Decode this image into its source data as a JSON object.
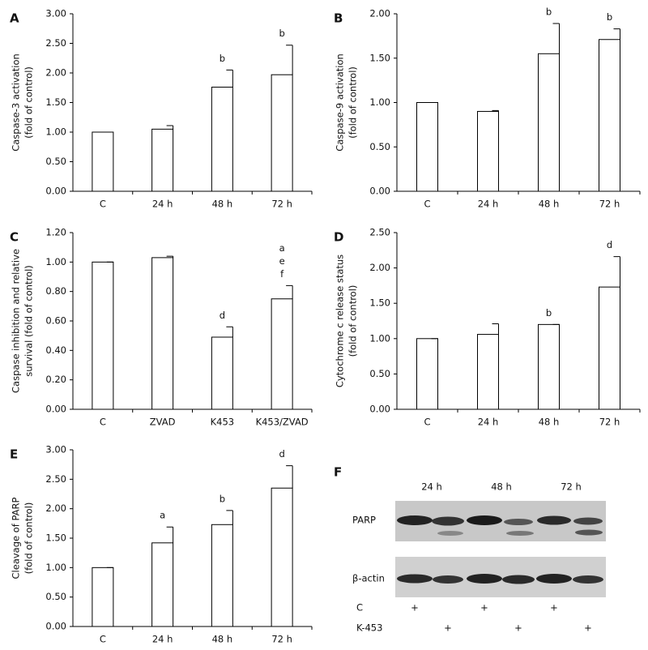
{
  "chart_data": [
    {
      "type": "bar",
      "panel": "A",
      "ylabel": [
        "Caspase-3 activation",
        "(fold of control)"
      ],
      "categories": [
        "C",
        "24 h",
        "48 h",
        "72 h"
      ],
      "values": [
        1.0,
        1.05,
        1.76,
        1.97
      ],
      "errors": [
        0,
        0.06,
        0.29,
        0.5
      ],
      "annotations": [
        null,
        null,
        [
          "b"
        ],
        [
          "b"
        ]
      ],
      "color": "#ffffff",
      "ylim": [
        0,
        3
      ],
      "yticks": [
        {
          "value": 0,
          "label": "0.00"
        },
        {
          "value": 0.5,
          "label": "0.50"
        },
        {
          "value": 1,
          "label": "1.00"
        },
        {
          "value": 1.5,
          "label": "1.50"
        },
        {
          "value": 2,
          "label": "2.00"
        },
        {
          "value": 2.5,
          "label": "2.50"
        },
        {
          "value": 3,
          "label": "3.00"
        }
      ]
    },
    {
      "type": "bar",
      "panel": "B",
      "ylabel": [
        "Caspase-9 activation",
        "(fold of control)"
      ],
      "categories": [
        "C",
        "24 h",
        "48 h",
        "72 h"
      ],
      "values": [
        1.0,
        0.9,
        1.55,
        1.71
      ],
      "errors": [
        0,
        0.01,
        0.34,
        0.12
      ],
      "annotations": [
        null,
        null,
        [
          "b"
        ],
        [
          "b"
        ]
      ],
      "color": "#ffffff",
      "ylim": [
        0,
        2
      ],
      "yticks": [
        {
          "value": 0,
          "label": "0.00"
        },
        {
          "value": 0.5,
          "label": "0.50"
        },
        {
          "value": 1,
          "label": "1.00"
        },
        {
          "value": 1.5,
          "label": "1.50"
        },
        {
          "value": 2,
          "label": "2.00"
        }
      ]
    },
    {
      "type": "bar",
      "panel": "C",
      "ylabel": [
        "Caspase inhibition and relative",
        "survival (fold of control)"
      ],
      "categories": [
        "C",
        "ZVAD",
        "K453",
        "K453/ZVAD"
      ],
      "values": [
        1.0,
        1.03,
        0.49,
        0.75
      ],
      "errors": [
        0,
        0.01,
        0.07,
        0.09
      ],
      "annotations": [
        null,
        null,
        [
          "d"
        ],
        [
          "a",
          "e",
          "f"
        ]
      ],
      "color": "#ffffff",
      "ylim": [
        0,
        1.2
      ],
      "yticks": [
        {
          "value": 0,
          "label": "0.00"
        },
        {
          "value": 0.2,
          "label": "0.20"
        },
        {
          "value": 0.4,
          "label": "0.40"
        },
        {
          "value": 0.6,
          "label": "0.60"
        },
        {
          "value": 0.8,
          "label": "0.80"
        },
        {
          "value": 1,
          "label": "1.00"
        },
        {
          "value": 1.2,
          "label": "1.20"
        }
      ]
    },
    {
      "type": "bar",
      "panel": "D",
      "ylabel": [
        "Cytochrome c release status",
        "(fold of control)"
      ],
      "categories": [
        "C",
        "24 h",
        "48 h",
        "72 h"
      ],
      "values": [
        1.0,
        1.06,
        1.2,
        1.73
      ],
      "errors": [
        0,
        0.15,
        0,
        0.43
      ],
      "annotations": [
        null,
        null,
        [
          "b"
        ],
        [
          "d"
        ]
      ],
      "color": "#ffffff",
      "ylim": [
        0,
        2.5
      ],
      "yticks": [
        {
          "value": 0,
          "label": "0.00"
        },
        {
          "value": 0.5,
          "label": "0.50"
        },
        {
          "value": 1,
          "label": "1.00"
        },
        {
          "value": 1.5,
          "label": "1.50"
        },
        {
          "value": 2,
          "label": "2.00"
        },
        {
          "value": 2.5,
          "label": "2.50"
        }
      ]
    },
    {
      "type": "bar",
      "panel": "E",
      "ylabel": [
        "Cleavage of PARP",
        "(fold of control)"
      ],
      "categories": [
        "C",
        "24 h",
        "48 h",
        "72 h"
      ],
      "values": [
        1.0,
        1.42,
        1.73,
        2.35
      ],
      "errors": [
        0,
        0.27,
        0.24,
        0.38
      ],
      "annotations": [
        null,
        [
          "a"
        ],
        [
          "b"
        ],
        [
          "d"
        ]
      ],
      "color": "#ffffff",
      "ylim": [
        0,
        3
      ],
      "yticks": [
        {
          "value": 0,
          "label": "0.00"
        },
        {
          "value": 0.5,
          "label": "0.50"
        },
        {
          "value": 1,
          "label": "1.00"
        },
        {
          "value": 1.5,
          "label": "1.50"
        },
        {
          "value": 2,
          "label": "2.00"
        },
        {
          "value": 2.5,
          "label": "2.50"
        },
        {
          "value": 3,
          "label": "3.00"
        }
      ]
    }
  ],
  "blot": {
    "panel": "F",
    "columns": [
      "24 h",
      "48 h",
      "72 h"
    ],
    "rows": [
      "PARP",
      "β-actin"
    ],
    "conditions": [
      {
        "label": "C",
        "marks": [
          "+",
          "+",
          "+"
        ]
      },
      {
        "label": "K-453",
        "marks": [
          "+",
          "+",
          "+"
        ]
      }
    ]
  }
}
